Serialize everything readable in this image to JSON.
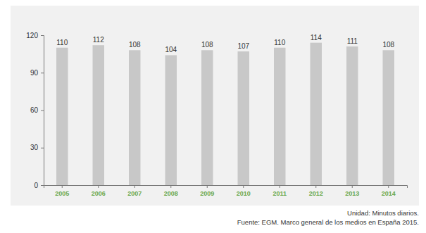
{
  "chart_data": {
    "type": "bar",
    "categories": [
      "2005",
      "2006",
      "2007",
      "2008",
      "2009",
      "2010",
      "2011",
      "2012",
      "2013",
      "2014"
    ],
    "values": [
      110,
      112,
      108,
      104,
      108,
      107,
      110,
      114,
      111,
      108
    ],
    "color": "#c8c8c8",
    "ylim": [
      0,
      120
    ],
    "yticks": [
      0,
      30,
      60,
      90,
      120
    ],
    "grid": false,
    "data_labels": true,
    "annotations": [
      "Unidad: Minutos diarios.",
      "Fuente: EGM. Marco general de los medios en España 2015."
    ]
  }
}
